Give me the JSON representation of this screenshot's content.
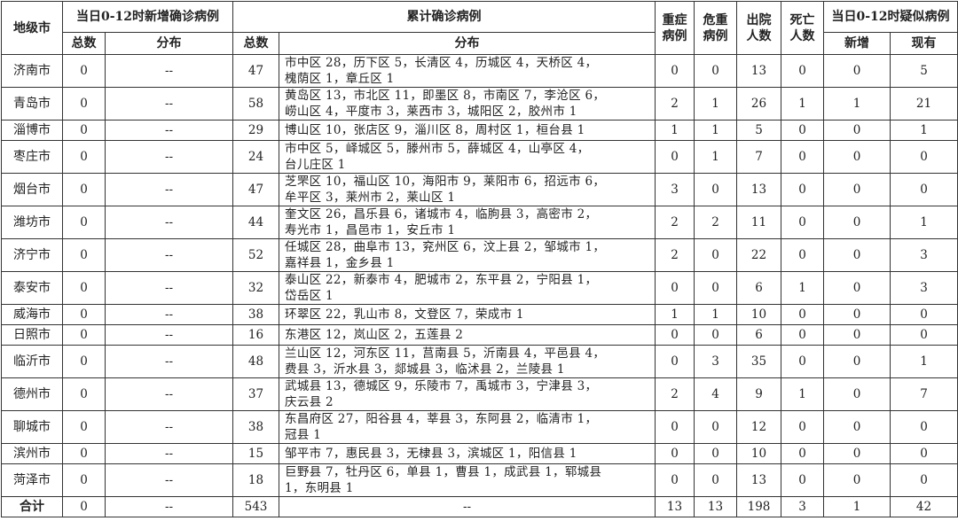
{
  "headers": {
    "city": "地级市",
    "new_group": "当日0-12时新增确诊病例",
    "cum_group": "累计确诊病例",
    "total": "总数",
    "dist": "分布",
    "severe": "重症\n病例",
    "critical": "危重\n病例",
    "discharged": "出院\n人数",
    "deaths": "死亡\n人数",
    "susp_group": "当日0-12时疑似病例",
    "susp_new": "新增",
    "susp_existing": "现有"
  },
  "rows": [
    {
      "city": "济南市",
      "new_total": "0",
      "new_dist": "--",
      "total": "47",
      "dist": "市中区 28，历下区 5，长清区 4，历城区 4，天桥区 4，\n槐荫区 1，章丘区 1",
      "severe": "0",
      "critical": "0",
      "discharged": "13",
      "deaths": "0",
      "susp_new": "0",
      "susp_existing": "5"
    },
    {
      "city": "青岛市",
      "new_total": "0",
      "new_dist": "--",
      "total": "58",
      "dist": "黄岛区 13，市北区 11，即墨区 8，市南区 7，李沧区 6，\n崂山区 4，平度市 3，莱西市 3，城阳区 2，胶州市 1",
      "severe": "2",
      "critical": "1",
      "discharged": "26",
      "deaths": "1",
      "susp_new": "1",
      "susp_existing": "21"
    },
    {
      "city": "淄博市",
      "new_total": "0",
      "new_dist": "--",
      "total": "29",
      "dist": "博山区 10，张店区 9，淄川区 8，周村区 1，桓台县 1",
      "severe": "1",
      "critical": "1",
      "discharged": "5",
      "deaths": "0",
      "susp_new": "0",
      "susp_existing": "1"
    },
    {
      "city": "枣庄市",
      "new_total": "0",
      "new_dist": "--",
      "total": "24",
      "dist": "市中区 5，峄城区 5，滕州市 5，薛城区 4，山亭区 4，\n台儿庄区 1",
      "severe": "0",
      "critical": "1",
      "discharged": "7",
      "deaths": "0",
      "susp_new": "0",
      "susp_existing": "0"
    },
    {
      "city": "烟台市",
      "new_total": "0",
      "new_dist": "--",
      "total": "47",
      "dist": "芝罘区 10，福山区 10，海阳市 9，莱阳市 6，招远市 6，\n牟平区 3，莱州市 2，莱山区 1",
      "severe": "3",
      "critical": "0",
      "discharged": "13",
      "deaths": "0",
      "susp_new": "0",
      "susp_existing": "0"
    },
    {
      "city": "潍坊市",
      "new_total": "0",
      "new_dist": "--",
      "total": "44",
      "dist": "奎文区 26，昌乐县 6，诸城市 4，临朐县 3，高密市 2，\n寿光市 1，昌邑市 1，安丘市 1",
      "severe": "2",
      "critical": "2",
      "discharged": "11",
      "deaths": "0",
      "susp_new": "0",
      "susp_existing": "1"
    },
    {
      "city": "济宁市",
      "new_total": "0",
      "new_dist": "--",
      "total": "52",
      "dist": "任城区 28，曲阜市 13，兖州区 6，汶上县 2，邹城市 1，\n嘉祥县 1，金乡县 1",
      "severe": "2",
      "critical": "0",
      "discharged": "22",
      "deaths": "0",
      "susp_new": "0",
      "susp_existing": "3"
    },
    {
      "city": "泰安市",
      "new_total": "0",
      "new_dist": "--",
      "total": "32",
      "dist": "泰山区 22，新泰市 4，肥城市 2，东平县 2，宁阳县 1，\n岱岳区 1",
      "severe": "0",
      "critical": "0",
      "discharged": "6",
      "deaths": "1",
      "susp_new": "0",
      "susp_existing": "3"
    },
    {
      "city": "威海市",
      "new_total": "0",
      "new_dist": "--",
      "total": "38",
      "dist": "环翠区 22，乳山市 8，文登区 7，荣成市 1",
      "severe": "1",
      "critical": "1",
      "discharged": "10",
      "deaths": "0",
      "susp_new": "0",
      "susp_existing": "0"
    },
    {
      "city": "日照市",
      "new_total": "0",
      "new_dist": "--",
      "total": "16",
      "dist": "东港区 12，岚山区 2，五莲县 2",
      "severe": "0",
      "critical": "0",
      "discharged": "6",
      "deaths": "0",
      "susp_new": "0",
      "susp_existing": "0"
    },
    {
      "city": "临沂市",
      "new_total": "0",
      "new_dist": "--",
      "total": "48",
      "dist": "兰山区 12，河东区 11，莒南县 5，沂南县 4，平邑县 4，\n费县 3，沂水县 3，郯城县 3，临沭县 2，兰陵县 1",
      "severe": "0",
      "critical": "3",
      "discharged": "35",
      "deaths": "0",
      "susp_new": "0",
      "susp_existing": "1"
    },
    {
      "city": "德州市",
      "new_total": "0",
      "new_dist": "--",
      "total": "37",
      "dist": "武城县 13，德城区 9，乐陵市 7，禹城市 3，宁津县 3，\n庆云县 2",
      "severe": "2",
      "critical": "4",
      "discharged": "9",
      "deaths": "1",
      "susp_new": "0",
      "susp_existing": "7"
    },
    {
      "city": "聊城市",
      "new_total": "0",
      "new_dist": "--",
      "total": "38",
      "dist": "东昌府区 27，阳谷县 4，莘县 3，东阿县 2，临清市 1，\n冠县 1",
      "severe": "0",
      "critical": "0",
      "discharged": "12",
      "deaths": "0",
      "susp_new": "0",
      "susp_existing": "0"
    },
    {
      "city": "滨州市",
      "new_total": "0",
      "new_dist": "--",
      "total": "15",
      "dist": "邹平市 7，惠民县 3，无棣县 3，滨城区 1，阳信县 1",
      "severe": "0",
      "critical": "0",
      "discharged": "10",
      "deaths": "0",
      "susp_new": "0",
      "susp_existing": "0"
    },
    {
      "city": "菏泽市",
      "new_total": "0",
      "new_dist": "--",
      "total": "18",
      "dist": "巨野县 7，牡丹区 6，单县 1，曹县 1，成武县 1，郓城县\n1，东明县 1",
      "severe": "0",
      "critical": "0",
      "discharged": "13",
      "deaths": "0",
      "susp_new": "0",
      "susp_existing": "0"
    }
  ],
  "total_row": {
    "city": "合计",
    "new_total": "0",
    "new_dist": "--",
    "total": "543",
    "dist": "--",
    "severe": "13",
    "critical": "13",
    "discharged": "198",
    "deaths": "3",
    "susp_new": "1",
    "susp_existing": "42"
  }
}
